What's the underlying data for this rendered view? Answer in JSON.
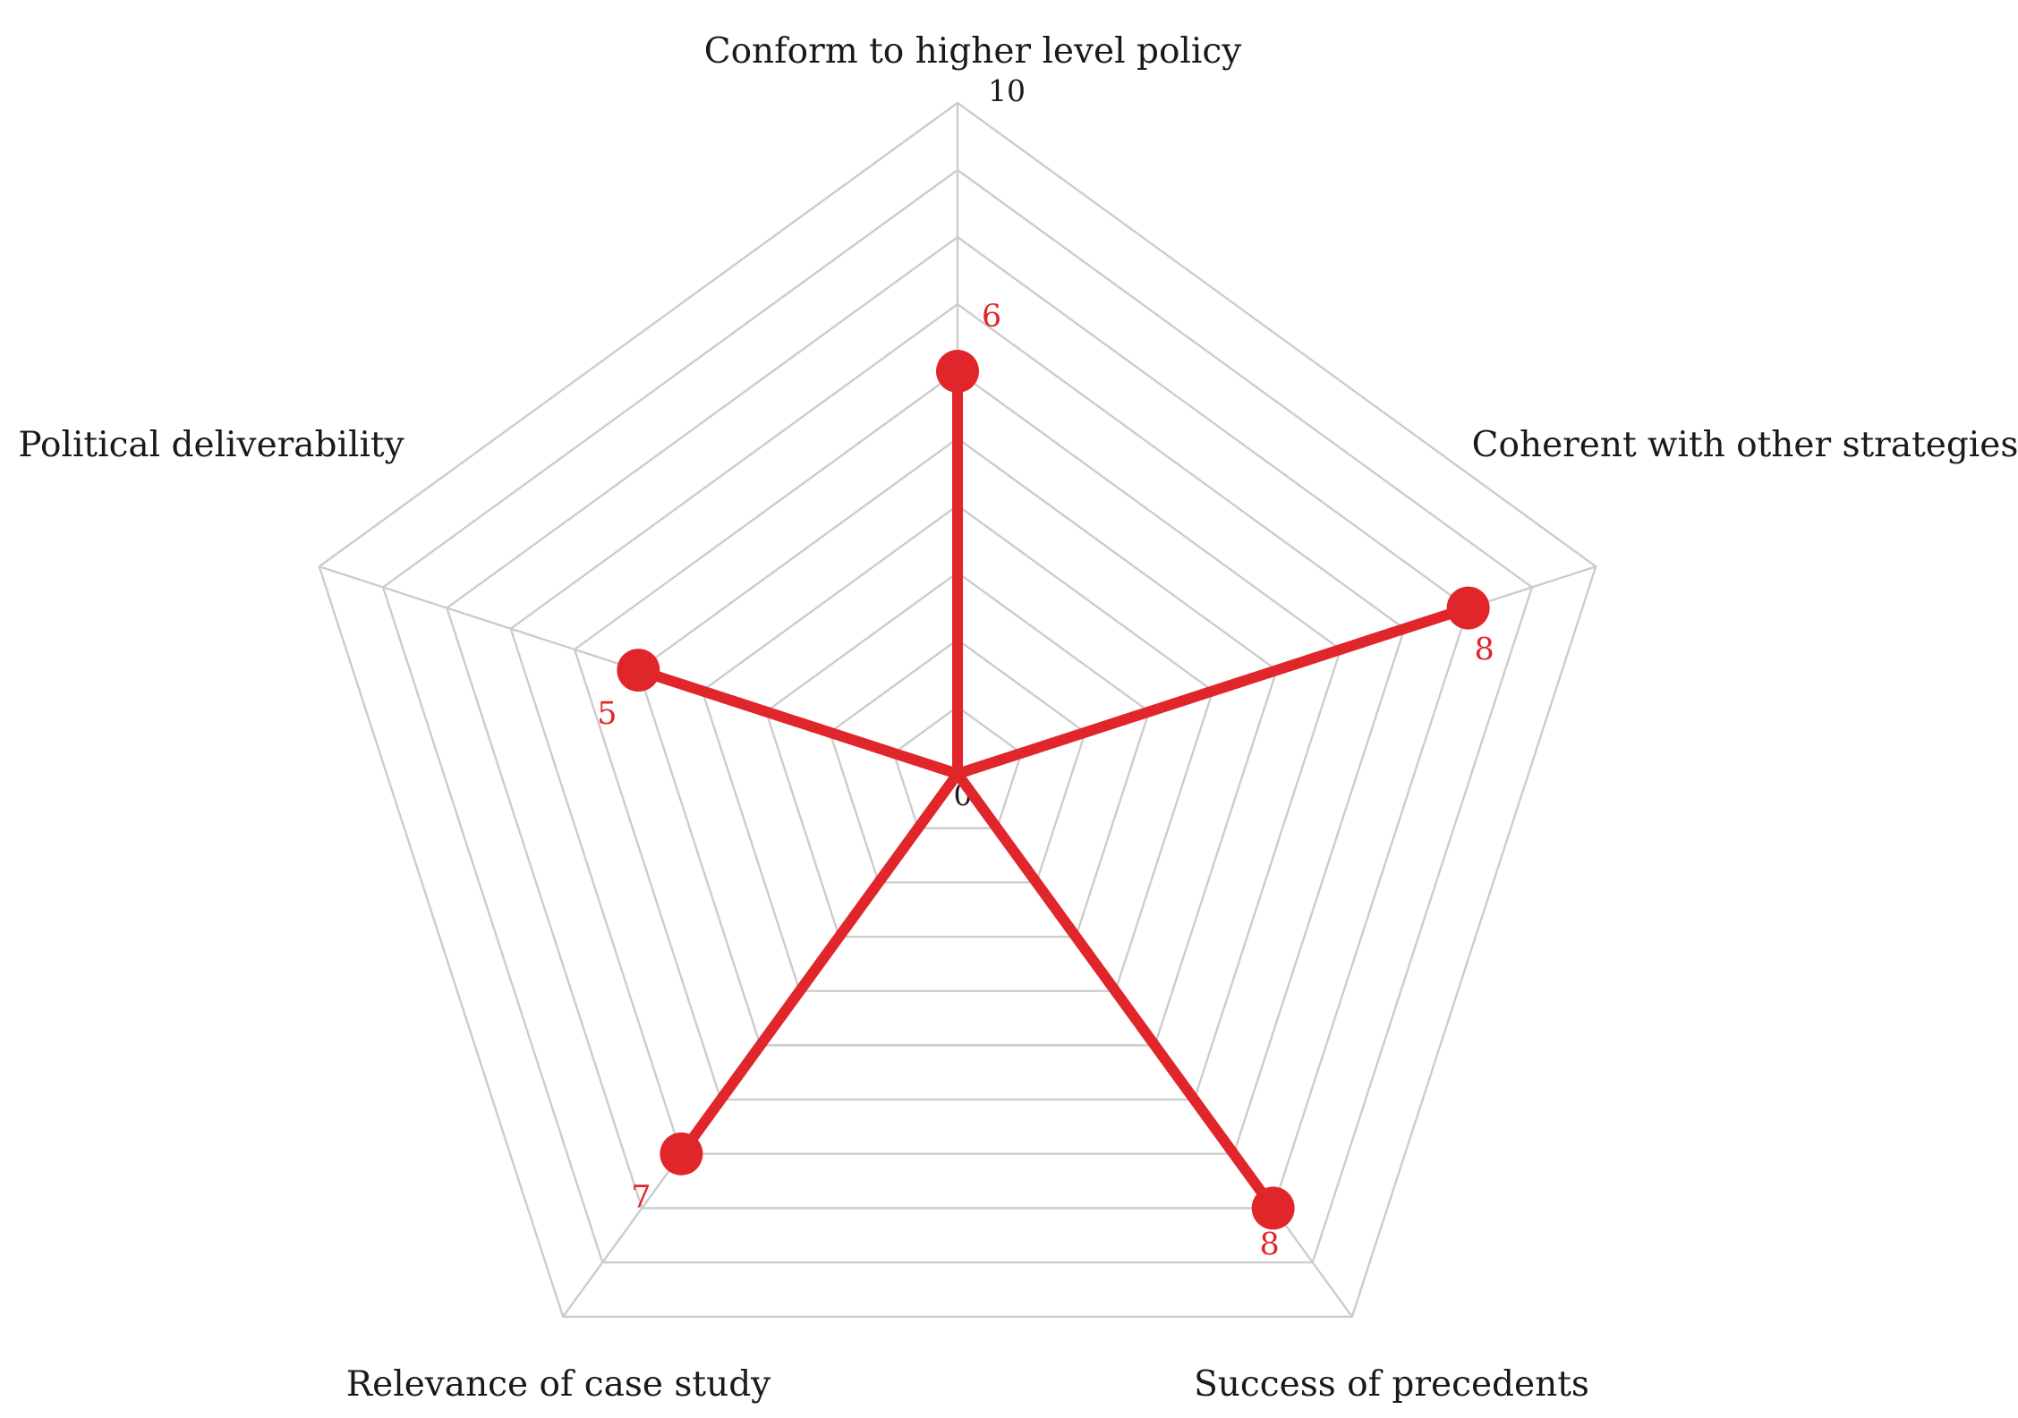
{
  "chart_data": {
    "type": "radar",
    "title": "",
    "axes": [
      "Conform to higher level policy",
      "Coherent with other strategies",
      "Success of precedents",
      "Relevance of case study",
      "Political deliverability"
    ],
    "series": [
      {
        "values": [
          6,
          8,
          8,
          7,
          5
        ]
      }
    ],
    "rlim": [
      0,
      10
    ],
    "rings": 10,
    "tick_labels": [
      "0",
      "10"
    ],
    "data_labels": [
      "6",
      "8",
      "8",
      "7",
      "5"
    ],
    "grid": true,
    "legend": "none",
    "series_style": "spokes-from-center-with-markers",
    "colors": {
      "series": "#e0262a",
      "grid": "#cccccc",
      "text": "#1a1a1a"
    }
  }
}
